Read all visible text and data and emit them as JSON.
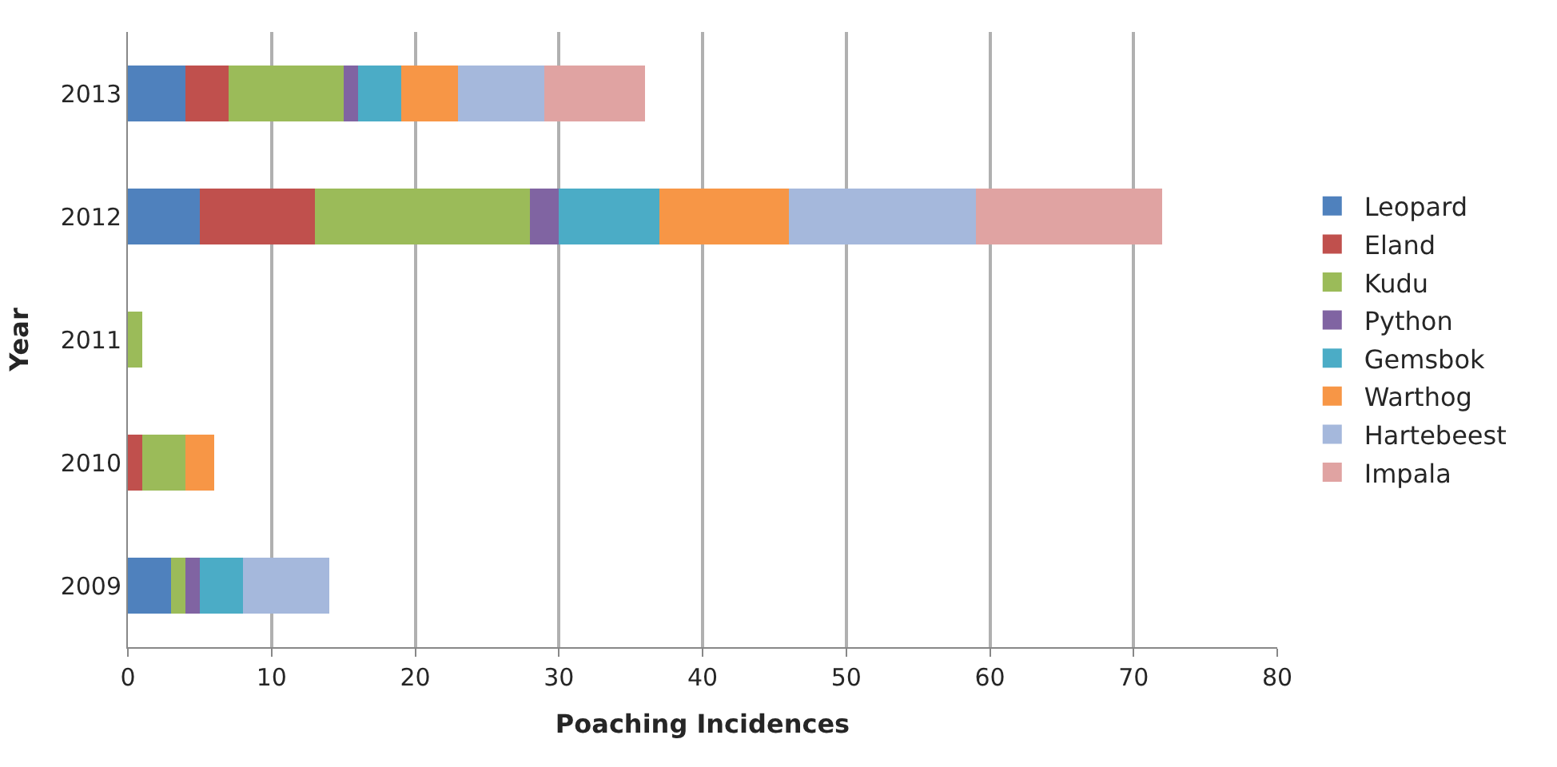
{
  "chart_data": {
    "type": "bar",
    "orientation": "horizontal",
    "stacked": true,
    "categories": [
      "2013",
      "2012",
      "2011",
      "2010",
      "2009"
    ],
    "xlabel": "Poaching Incidences",
    "ylabel": "Year",
    "xlim": [
      0,
      80
    ],
    "xticks": [
      0,
      10,
      20,
      30,
      40,
      50,
      60,
      70,
      80
    ],
    "grid": "x",
    "legend": "right",
    "series": [
      {
        "name": "Leopard",
        "color": "#4f81bd",
        "values": [
          4,
          5,
          0,
          0,
          3
        ]
      },
      {
        "name": "Eland",
        "color": "#c0504d",
        "values": [
          3,
          8,
          0,
          1,
          0
        ]
      },
      {
        "name": "Kudu",
        "color": "#9bbb59",
        "values": [
          8,
          15,
          1,
          3,
          1
        ]
      },
      {
        "name": "Python",
        "color": "#8064a2",
        "values": [
          1,
          2,
          0,
          0,
          1
        ]
      },
      {
        "name": "Gemsbok",
        "color": "#4bacc6",
        "values": [
          3,
          7,
          0,
          0,
          3
        ]
      },
      {
        "name": "Warthog",
        "color": "#f79646",
        "values": [
          4,
          9,
          0,
          2,
          0
        ]
      },
      {
        "name": "Hartebeest",
        "color": "#a5b8dc",
        "values": [
          6,
          13,
          0,
          0,
          6
        ]
      },
      {
        "name": "Impala",
        "color": "#e0a3a2",
        "values": [
          7,
          13,
          0,
          0,
          0
        ]
      }
    ]
  }
}
